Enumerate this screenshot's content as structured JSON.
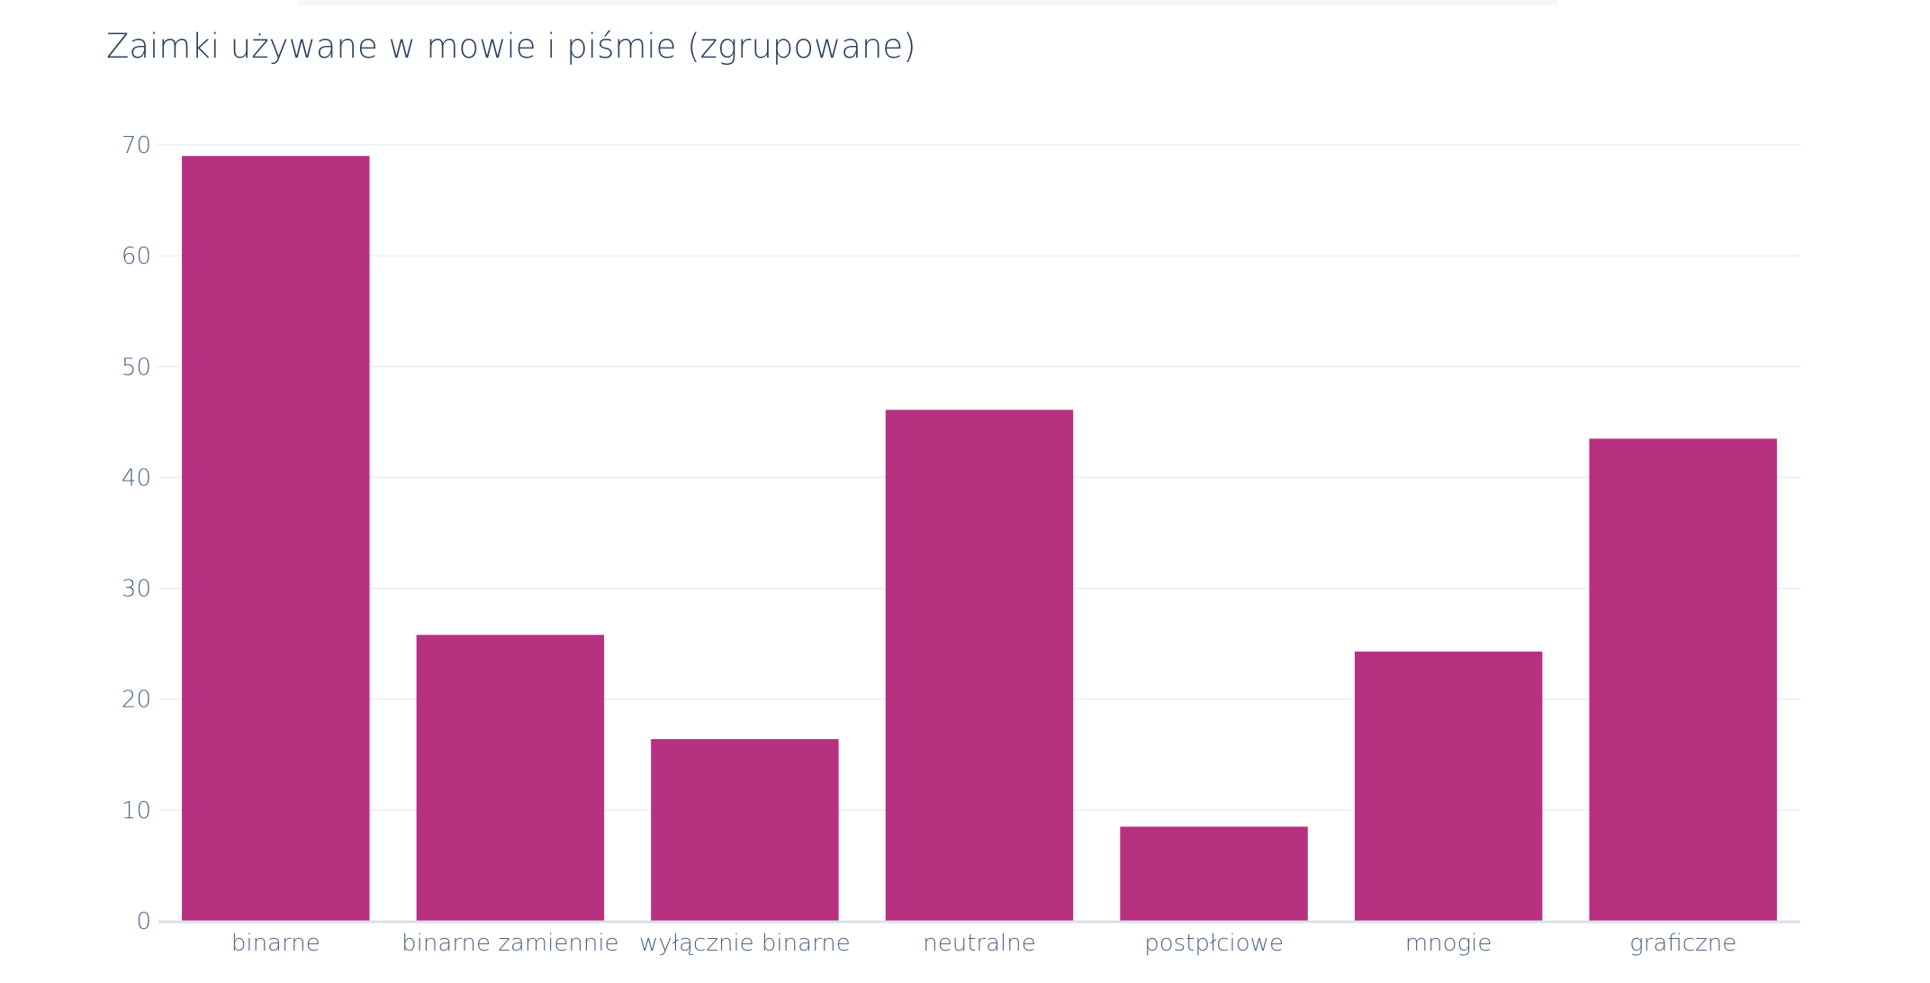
{
  "chart_data": {
    "type": "bar",
    "title": "Zaimki używane w mowie i piśmie (zgrupowane)",
    "xlabel": "",
    "ylabel": "",
    "categories": [
      "binarne",
      "binarne zamiennie",
      "wyłącznie binarne",
      "neutralne",
      "postpłciowe",
      "mnogie",
      "graficzne"
    ],
    "values": [
      69.0,
      25.8,
      16.4,
      46.1,
      8.5,
      24.3,
      43.5
    ],
    "ylim": [
      0,
      70
    ],
    "yticks": [
      0,
      10,
      20,
      30,
      40,
      50,
      60,
      70
    ],
    "grid": true,
    "bar_color": "#b83080",
    "grid_color": "#e9edf3",
    "axis_color": "#d9e1ec"
  }
}
